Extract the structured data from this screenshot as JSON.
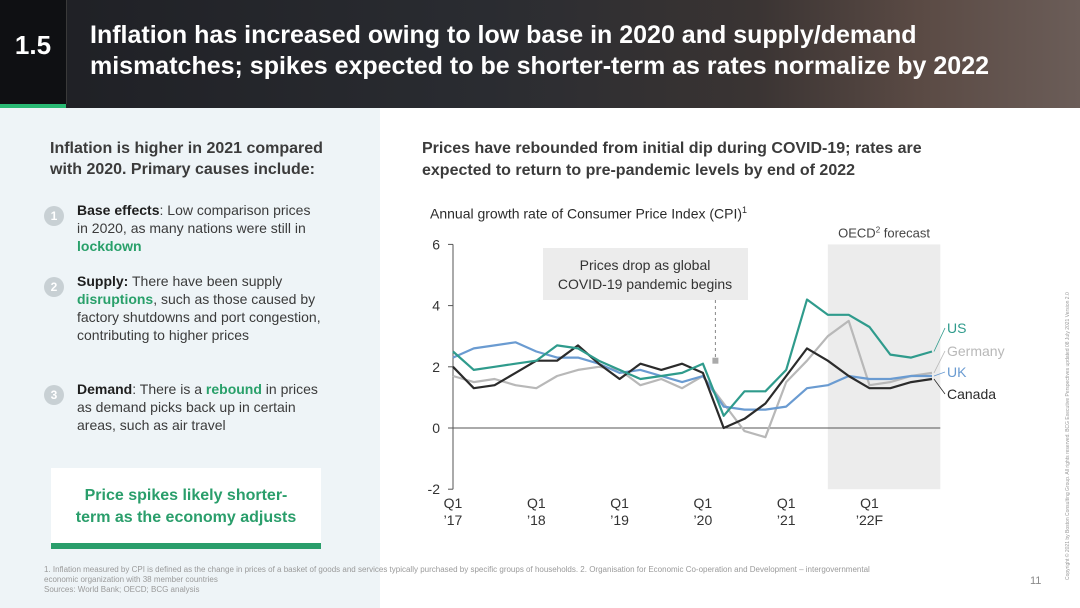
{
  "header": {
    "section_number": "1.5",
    "title_line1": "Inflation has increased owing to low base in 2020 and supply/demand",
    "title_line2": "mismatches; spikes expected to be shorter-term as rates normalize by 2022"
  },
  "left": {
    "heading_line1": "Inflation is higher in 2021 compared",
    "heading_line2": "with 2020. Primary causes include:",
    "causes": [
      {
        "number": "1",
        "label": "Base effects",
        "text_a": ": Low comparison prices in 2020, as many nations were still in ",
        "highlight": "lockdown",
        "text_b": ""
      },
      {
        "number": "2",
        "label": "Supply:",
        "text_a": " There have been supply ",
        "highlight": "disruptions",
        "text_b": ", such as those caused by factory shutdowns and port congestion, contributing to higher prices"
      },
      {
        "number": "3",
        "label": "Demand",
        "text_a": ": There is a ",
        "highlight": "rebound",
        "text_b": " in prices as demand picks back up in certain areas, such as air travel"
      }
    ],
    "callout_line1": "Price spikes likely shorter-",
    "callout_line2": "term as the economy adjusts"
  },
  "right": {
    "heading_line1": "Prices have rebounded from initial dip during COVID-19; rates are",
    "heading_line2": "expected to return to pre-pandemic levels by end of 2022"
  },
  "chart_data": {
    "type": "line",
    "title": "Annual growth rate of Consumer Price Index (CPI)",
    "title_superscript": "1",
    "ylim": [
      -2,
      6
    ],
    "yticks": [
      -2,
      0,
      2,
      4,
      6
    ],
    "xlim": [
      0,
      5.9
    ],
    "xticks": [
      {
        "x": 0,
        "line1": "Q1",
        "line2": "’17"
      },
      {
        "x": 1,
        "line1": "Q1",
        "line2": "’18"
      },
      {
        "x": 2,
        "line1": "Q1",
        "line2": "’19"
      },
      {
        "x": 3,
        "line1": "Q1",
        "line2": "’20"
      },
      {
        "x": 4,
        "line1": "Q1",
        "line2": "’21"
      },
      {
        "x": 5,
        "line1": "Q1",
        "line2": "’22F"
      }
    ],
    "forecast": {
      "label": "OECD",
      "label_sup": "2",
      "label_rest": " forecast",
      "x_start": 4.5,
      "x_end": 5.85
    },
    "annotation": {
      "line1": "Prices drop as global",
      "line2": "COVID-19 pandemic begins",
      "x": 3.15,
      "y": 2.2
    },
    "series": [
      {
        "name": "US",
        "color": "#2f9b8c",
        "x": [
          0,
          0.25,
          0.5,
          0.75,
          1,
          1.25,
          1.5,
          1.75,
          2,
          2.25,
          2.5,
          2.75,
          3,
          3.25,
          3.5,
          3.75,
          4,
          4.25,
          4.5,
          4.75,
          5,
          5.25,
          5.5,
          5.75
        ],
        "y": [
          2.5,
          1.9,
          2.0,
          2.1,
          2.2,
          2.7,
          2.6,
          2.2,
          1.9,
          1.6,
          1.7,
          1.8,
          2.1,
          0.4,
          1.2,
          1.2,
          1.9,
          4.2,
          3.7,
          3.7,
          3.3,
          2.4,
          2.3,
          2.5
        ]
      },
      {
        "name": "Germany",
        "color": "#b8b8b8",
        "x": [
          0,
          0.25,
          0.5,
          0.75,
          1,
          1.25,
          1.5,
          1.75,
          2,
          2.25,
          2.5,
          2.75,
          3,
          3.25,
          3.5,
          3.75,
          4,
          4.25,
          4.5,
          4.75,
          5,
          5.25,
          5.5,
          5.75
        ],
        "y": [
          1.7,
          1.5,
          1.6,
          1.4,
          1.3,
          1.7,
          1.9,
          2.0,
          1.9,
          1.4,
          1.6,
          1.3,
          1.7,
          0.8,
          -0.1,
          -0.3,
          1.5,
          2.2,
          3.0,
          3.5,
          1.4,
          1.5,
          1.7,
          1.8
        ]
      },
      {
        "name": "UK",
        "color": "#6a9bd1",
        "x": [
          0,
          0.25,
          0.5,
          0.75,
          1,
          1.25,
          1.5,
          1.75,
          2,
          2.25,
          2.5,
          2.75,
          3,
          3.25,
          3.5,
          3.75,
          4,
          4.25,
          4.5,
          4.75,
          5,
          5.25,
          5.5,
          5.75
        ],
        "y": [
          2.3,
          2.6,
          2.7,
          2.8,
          2.5,
          2.3,
          2.3,
          2.1,
          1.8,
          1.9,
          1.7,
          1.5,
          1.7,
          0.7,
          0.6,
          0.6,
          0.7,
          1.3,
          1.4,
          1.7,
          1.6,
          1.6,
          1.7,
          1.7
        ]
      },
      {
        "name": "Canada",
        "color": "#2b2b2b",
        "x": [
          0,
          0.25,
          0.5,
          0.75,
          1,
          1.25,
          1.5,
          1.75,
          2,
          2.25,
          2.5,
          2.75,
          3,
          3.25,
          3.5,
          3.75,
          4,
          4.25,
          4.5,
          4.75,
          5,
          5.25,
          5.5,
          5.75
        ],
        "y": [
          2.0,
          1.3,
          1.4,
          1.8,
          2.2,
          2.2,
          2.7,
          2.1,
          1.6,
          2.1,
          1.9,
          2.1,
          1.8,
          0.0,
          0.3,
          0.8,
          1.7,
          2.6,
          2.2,
          1.7,
          1.3,
          1.3,
          1.5,
          1.6
        ]
      }
    ]
  },
  "footer": {
    "footnote_line1": "1. Inflation measured by CPI is defined as the change in prices of a basket of goods and services typically purchased by specific groups of households. 2. Organisation for Economic Co-operation and Development – intergovernmental",
    "footnote_line2": "economic organization with 38 member countries",
    "footnote_line3": "Sources: World Bank; OECD; BCG analysis",
    "page_number": "11",
    "copyright": "Copyright © 2021 by Boston Consulting Group. All rights reserved. BCG Executive Perspectives updated 08 July 2021 Version 2.0"
  }
}
